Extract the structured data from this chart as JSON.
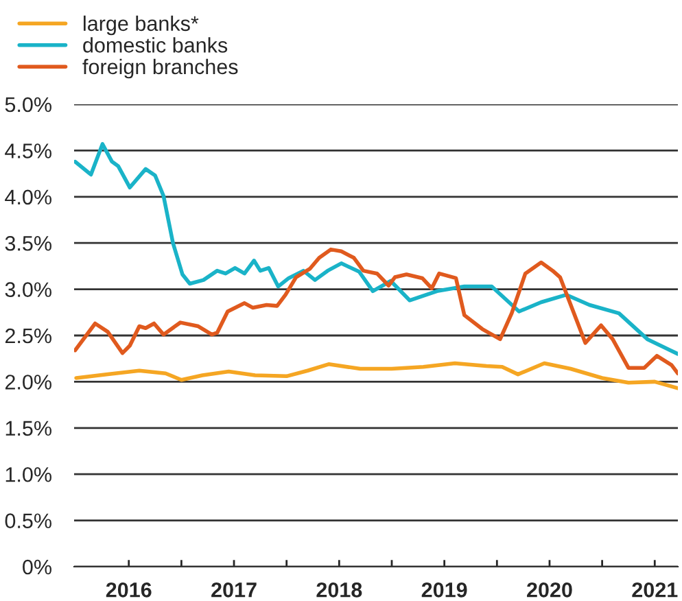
{
  "chart_data": {
    "type": "line",
    "series": [
      {
        "name": "large banks*",
        "color": "#f5a623",
        "x": [
          2016.0,
          2016.3,
          2016.6,
          2016.85,
          2017.0,
          2017.2,
          2017.45,
          2017.7,
          2018.0,
          2018.2,
          2018.4,
          2018.7,
          2019.0,
          2019.3,
          2019.6,
          2019.9,
          2020.05,
          2020.2,
          2020.45,
          2020.7,
          2021.0,
          2021.25,
          2021.5,
          2021.72
        ],
        "values": [
          2.04,
          2.08,
          2.12,
          2.09,
          2.02,
          2.07,
          2.11,
          2.07,
          2.06,
          2.12,
          2.19,
          2.14,
          2.14,
          2.16,
          2.2,
          2.17,
          2.16,
          2.08,
          2.2,
          2.14,
          2.04,
          1.99,
          2.0,
          1.93
        ]
      },
      {
        "name": "domestic banks",
        "color": "#1ab3c8",
        "x": [
          2015.99,
          2016.14,
          2016.25,
          2016.34,
          2016.4,
          2016.51,
          2016.66,
          2016.75,
          2016.83,
          2016.92,
          2017.01,
          2017.08,
          2017.21,
          2017.34,
          2017.42,
          2017.51,
          2017.6,
          2017.69,
          2017.75,
          2017.83,
          2017.92,
          2018.02,
          2018.16,
          2018.27,
          2018.39,
          2018.52,
          2018.69,
          2018.82,
          2018.99,
          2019.17,
          2019.43,
          2019.69,
          2019.95,
          2020.21,
          2020.42,
          2020.66,
          2020.88,
          2021.16,
          2021.43,
          2021.72
        ],
        "values": [
          4.38,
          4.24,
          4.57,
          4.38,
          4.33,
          4.1,
          4.3,
          4.23,
          4.01,
          3.5,
          3.16,
          3.06,
          3.1,
          3.2,
          3.17,
          3.23,
          3.17,
          3.31,
          3.2,
          3.23,
          3.03,
          3.12,
          3.2,
          3.1,
          3.2,
          3.28,
          3.19,
          2.98,
          3.09,
          2.88,
          2.98,
          3.03,
          3.03,
          2.76,
          2.86,
          2.94,
          2.83,
          2.74,
          2.46,
          2.3
        ]
      },
      {
        "name": "foreign branches",
        "color": "#e05a1e",
        "x": [
          2015.99,
          2016.18,
          2016.3,
          2016.44,
          2016.51,
          2016.6,
          2016.66,
          2016.74,
          2016.83,
          2016.99,
          2017.16,
          2017.29,
          2017.34,
          2017.44,
          2017.6,
          2017.68,
          2017.81,
          2017.91,
          2017.99,
          2018.09,
          2018.22,
          2018.31,
          2018.42,
          2018.52,
          2018.64,
          2018.73,
          2018.86,
          2018.97,
          2019.03,
          2019.14,
          2019.29,
          2019.38,
          2019.45,
          2019.61,
          2019.69,
          2019.86,
          2020.03,
          2020.14,
          2020.27,
          2020.42,
          2020.53,
          2020.6,
          2020.84,
          2020.99,
          2021.1,
          2021.25,
          2021.4,
          2021.52,
          2021.66,
          2021.72
        ],
        "values": [
          2.34,
          2.63,
          2.54,
          2.31,
          2.39,
          2.6,
          2.58,
          2.63,
          2.51,
          2.64,
          2.6,
          2.51,
          2.53,
          2.76,
          2.85,
          2.8,
          2.83,
          2.82,
          2.94,
          3.13,
          3.22,
          3.34,
          3.43,
          3.41,
          3.34,
          3.2,
          3.17,
          3.04,
          3.13,
          3.16,
          3.12,
          3.01,
          3.17,
          3.12,
          2.72,
          2.57,
          2.46,
          2.74,
          3.17,
          3.29,
          3.2,
          3.13,
          2.42,
          2.61,
          2.46,
          2.15,
          2.15,
          2.28,
          2.18,
          2.09
        ]
      }
    ],
    "xlim": [
      2015.98,
      2021.72
    ],
    "xticks": [
      {
        "value": 2016.5,
        "label": "2016"
      },
      {
        "value": 2017,
        "label": null
      },
      {
        "value": 2017.5,
        "label": "2017"
      },
      {
        "value": 2018,
        "label": null
      },
      {
        "value": 2018.5,
        "label": "2018"
      },
      {
        "value": 2019,
        "label": null
      },
      {
        "value": 2019.5,
        "label": "2019"
      },
      {
        "value": 2020,
        "label": null
      },
      {
        "value": 2020.5,
        "label": "2020"
      },
      {
        "value": 2021,
        "label": null
      },
      {
        "value": 2021.5,
        "label": "2021"
      }
    ],
    "ylim": [
      0,
      5.0
    ],
    "yticks": [
      {
        "value": 0,
        "label": "0%"
      },
      {
        "value": 0.5,
        "label": "0.5%"
      },
      {
        "value": 1.0,
        "label": "1.0%"
      },
      {
        "value": 1.5,
        "label": "1.5%"
      },
      {
        "value": 2.0,
        "label": "2.0%"
      },
      {
        "value": 2.5,
        "label": "2.5%"
      },
      {
        "value": 3.0,
        "label": "3.0%"
      },
      {
        "value": 3.5,
        "label": "3.5%"
      },
      {
        "value": 4.0,
        "label": "4.0%"
      },
      {
        "value": 4.5,
        "label": "4.5%"
      },
      {
        "value": 5.0,
        "label": "5.0%"
      }
    ],
    "grid": "y",
    "legend": "top left",
    "marker": "none",
    "line_style": "solid"
  }
}
